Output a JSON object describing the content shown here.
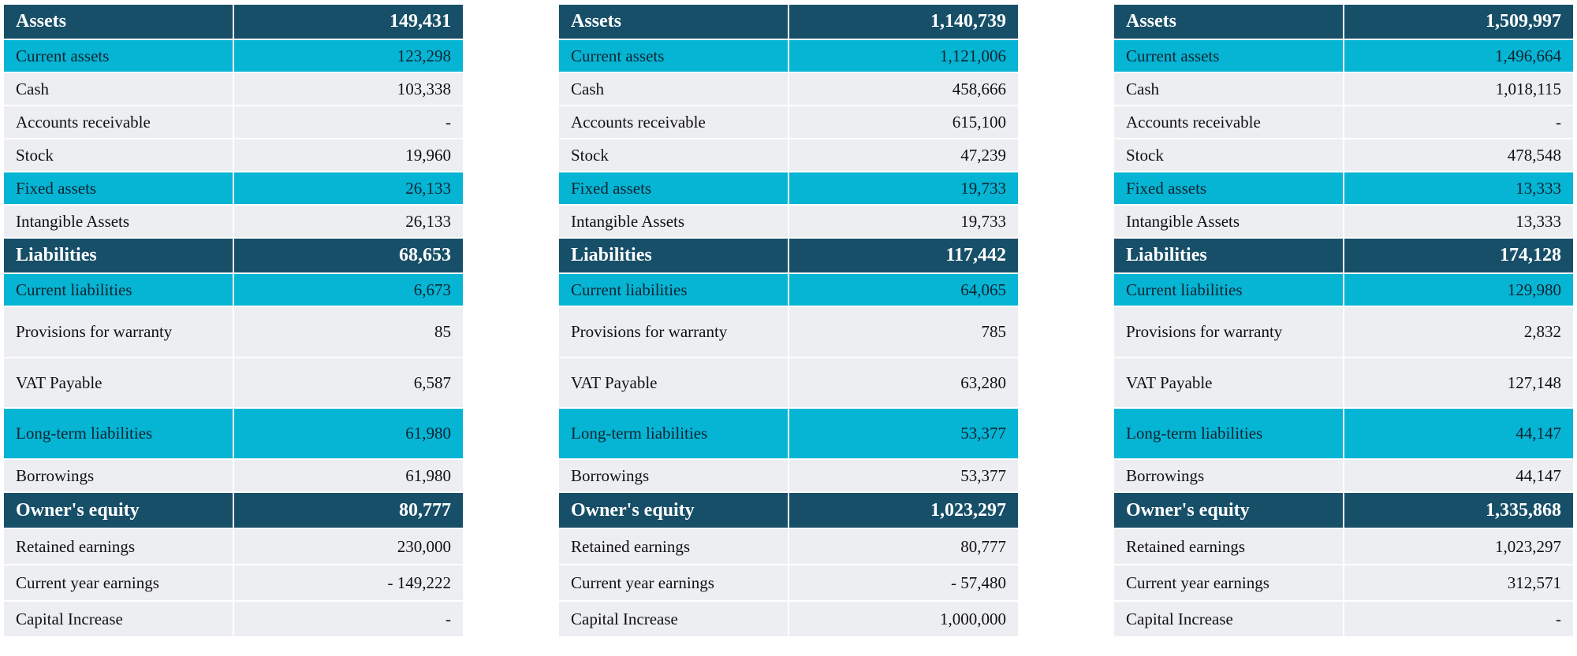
{
  "sheets": [
    {
      "assets": {
        "label": "Assets",
        "value": "149,431"
      },
      "current_assets": {
        "label": "Current assets",
        "value": "123,298"
      },
      "cash": {
        "label": "Cash",
        "value": "103,338"
      },
      "accounts_receivable": {
        "label": "Accounts receivable",
        "value": "-"
      },
      "stock": {
        "label": "Stock",
        "value": "19,960"
      },
      "fixed_assets": {
        "label": "Fixed assets",
        "value": "26,133"
      },
      "intangible_assets": {
        "label": "Intangible Assets",
        "value": "26,133"
      },
      "liabilities": {
        "label": "Liabilities",
        "value": "68,653"
      },
      "current_liabilities": {
        "label": "Current liabilities",
        "value": "6,673"
      },
      "provisions_for_warranty": {
        "label": "Provisions for warranty",
        "value": "85"
      },
      "vat_payable": {
        "label": "VAT Payable",
        "value": "6,587"
      },
      "long_term_liabilities": {
        "label": "Long-term liabilities",
        "value": "61,980"
      },
      "borrowings": {
        "label": "Borrowings",
        "value": "61,980"
      },
      "owners_equity": {
        "label": "Owner's equity",
        "value": "80,777"
      },
      "retained_earnings": {
        "label": "Retained earnings",
        "value": "230,000"
      },
      "current_year_earnings": {
        "label": "Current year earnings",
        "value": "- 149,222"
      },
      "capital_increase": {
        "label": "Capital Increase",
        "value": "-"
      }
    },
    {
      "assets": {
        "label": "Assets",
        "value": "1,140,739"
      },
      "current_assets": {
        "label": "Current assets",
        "value": "1,121,006"
      },
      "cash": {
        "label": "Cash",
        "value": "458,666"
      },
      "accounts_receivable": {
        "label": "Accounts receivable",
        "value": "615,100"
      },
      "stock": {
        "label": "Stock",
        "value": "47,239"
      },
      "fixed_assets": {
        "label": "Fixed assets",
        "value": "19,733"
      },
      "intangible_assets": {
        "label": "Intangible Assets",
        "value": "19,733"
      },
      "liabilities": {
        "label": "Liabilities",
        "value": "117,442"
      },
      "current_liabilities": {
        "label": "Current liabilities",
        "value": "64,065"
      },
      "provisions_for_warranty": {
        "label": "Provisions for warranty",
        "value": "785"
      },
      "vat_payable": {
        "label": "VAT Payable",
        "value": "63,280"
      },
      "long_term_liabilities": {
        "label": "Long-term liabilities",
        "value": "53,377"
      },
      "borrowings": {
        "label": "Borrowings",
        "value": "53,377"
      },
      "owners_equity": {
        "label": "Owner's equity",
        "value": "1,023,297"
      },
      "retained_earnings": {
        "label": "Retained earnings",
        "value": "80,777"
      },
      "current_year_earnings": {
        "label": "Current year earnings",
        "value": "- 57,480"
      },
      "capital_increase": {
        "label": "Capital Increase",
        "value": "1,000,000"
      }
    },
    {
      "assets": {
        "label": "Assets",
        "value": "1,509,997"
      },
      "current_assets": {
        "label": "Current assets",
        "value": "1,496,664"
      },
      "cash": {
        "label": "Cash",
        "value": "1,018,115"
      },
      "accounts_receivable": {
        "label": "Accounts receivable",
        "value": "-"
      },
      "stock": {
        "label": "Stock",
        "value": "478,548"
      },
      "fixed_assets": {
        "label": "Fixed assets",
        "value": "13,333"
      },
      "intangible_assets": {
        "label": "Intangible Assets",
        "value": "13,333"
      },
      "liabilities": {
        "label": "Liabilities",
        "value": "174,128"
      },
      "current_liabilities": {
        "label": "Current liabilities",
        "value": "129,980"
      },
      "provisions_for_warranty": {
        "label": "Provisions for warranty",
        "value": "2,832"
      },
      "vat_payable": {
        "label": "VAT Payable",
        "value": "127,148"
      },
      "long_term_liabilities": {
        "label": "Long-term liabilities",
        "value": "44,147"
      },
      "borrowings": {
        "label": "Borrowings",
        "value": "44,147"
      },
      "owners_equity": {
        "label": "Owner's equity",
        "value": "1,335,868"
      },
      "retained_earnings": {
        "label": "Retained earnings",
        "value": "1,023,297"
      },
      "current_year_earnings": {
        "label": "Current year earnings",
        "value": "312,571"
      },
      "capital_increase": {
        "label": "Capital Increase",
        "value": "-"
      }
    }
  ],
  "colors": {
    "header": "#174f68",
    "subheader": "#06b4d4",
    "item": "#eceef1"
  }
}
